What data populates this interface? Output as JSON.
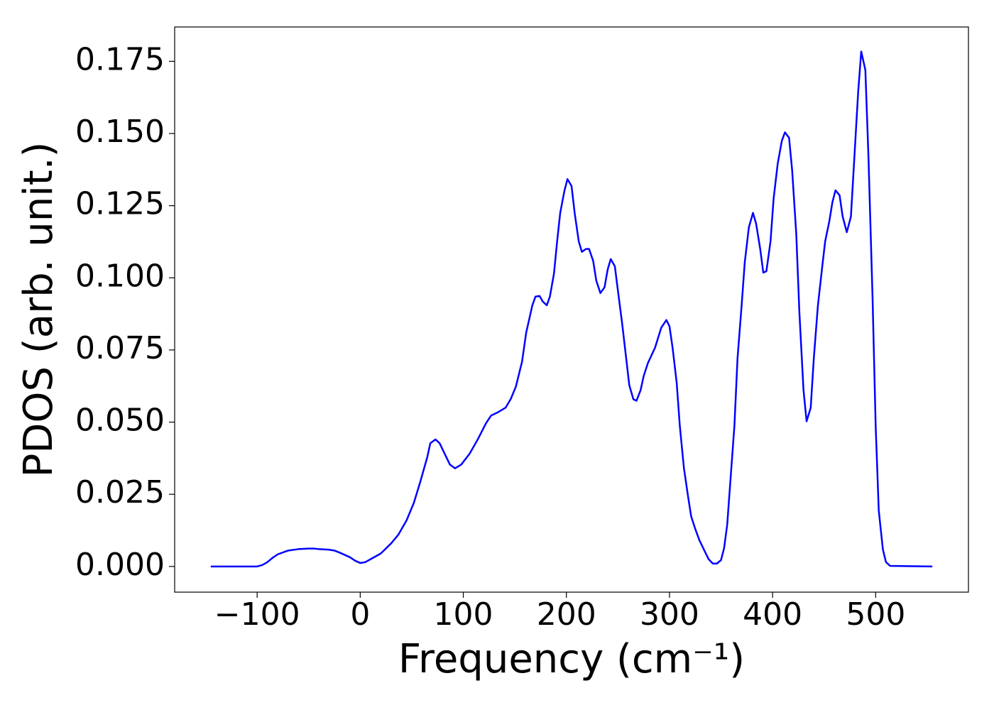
{
  "chart_data": {
    "type": "line",
    "xlabel": "Frequency (cm⁻¹)",
    "ylabel": "PDOS (arb. unit.)",
    "x": [
      -145,
      -100,
      -95,
      -90,
      -85,
      -80,
      -70,
      -60,
      -50,
      -45,
      -40,
      -30,
      -25,
      -20,
      -10,
      -5,
      0,
      5,
      10,
      20,
      30,
      37,
      45,
      52,
      58,
      65,
      68,
      73,
      77,
      82,
      87,
      92,
      98,
      106,
      114,
      122,
      127,
      134,
      141,
      146,
      151,
      157,
      161,
      167,
      170,
      174,
      177,
      181,
      184,
      188,
      191,
      194,
      198,
      201,
      205,
      208,
      212,
      215,
      219,
      222,
      226,
      229,
      233,
      237,
      240,
      243,
      247,
      250,
      254,
      258,
      261,
      265,
      268,
      272,
      275,
      279,
      286,
      292,
      297,
      300,
      303,
      307,
      310,
      314,
      318,
      321,
      325,
      329,
      334,
      338,
      342,
      346,
      350,
      353,
      356,
      359,
      363,
      366,
      370,
      373,
      377,
      381,
      384,
      388,
      391,
      394,
      398,
      401,
      405,
      409,
      412,
      416,
      419,
      423,
      426,
      430,
      433,
      437,
      440,
      444,
      448,
      451,
      455,
      458,
      461,
      465,
      468,
      472,
      476,
      479,
      483,
      486,
      490,
      493,
      497,
      500,
      503,
      507,
      510,
      514,
      555
    ],
    "series": [
      {
        "color": "#0000ff",
        "values": [
          0,
          0,
          0.0005,
          0.0015,
          0.003,
          0.0042,
          0.0055,
          0.006,
          0.0062,
          0.0062,
          0.006,
          0.0058,
          0.0055,
          0.0048,
          0.0032,
          0.002,
          0.0012,
          0.0015,
          0.0025,
          0.0045,
          0.008,
          0.011,
          0.016,
          0.022,
          0.029,
          0.0378,
          0.0427,
          0.044,
          0.0427,
          0.039,
          0.0353,
          0.034,
          0.0353,
          0.039,
          0.044,
          0.0496,
          0.0523,
          0.0535,
          0.055,
          0.058,
          0.0623,
          0.071,
          0.081,
          0.0905,
          0.0935,
          0.0937,
          0.0918,
          0.0905,
          0.0935,
          0.1016,
          0.1126,
          0.1225,
          0.13,
          0.1342,
          0.1318,
          0.1225,
          0.1126,
          0.109,
          0.11,
          0.11,
          0.1058,
          0.099,
          0.0947,
          0.0967,
          0.1028,
          0.1065,
          0.104,
          0.0955,
          0.0844,
          0.0721,
          0.0628,
          0.0579,
          0.0574,
          0.0611,
          0.066,
          0.0704,
          0.0758,
          0.0827,
          0.0854,
          0.0832,
          0.0758,
          0.0636,
          0.0488,
          0.0341,
          0.0243,
          0.0174,
          0.013,
          0.0091,
          0.0054,
          0.0025,
          0.001,
          0.001,
          0.0022,
          0.0064,
          0.0145,
          0.0292,
          0.0488,
          0.0721,
          0.0905,
          0.1053,
          0.1175,
          0.1225,
          0.1188,
          0.11,
          0.1018,
          0.1023,
          0.1126,
          0.1274,
          0.1396,
          0.1475,
          0.1504,
          0.1485,
          0.1372,
          0.1151,
          0.0881,
          0.0611,
          0.0503,
          0.055,
          0.0721,
          0.0905,
          0.1033,
          0.1126,
          0.1195,
          0.1261,
          0.1303,
          0.1286,
          0.1212,
          0.1158,
          0.1212,
          0.1396,
          0.1642,
          0.1784,
          0.172,
          0.1421,
          0.093,
          0.0488,
          0.0194,
          0.0059,
          0.0015,
          0.0002,
          0
        ]
      }
    ],
    "xlim": [
      -180,
      590
    ],
    "ylim": [
      -0.0089,
      0.1869
    ],
    "xticks": [
      {
        "value": -100,
        "label": "−100"
      },
      0,
      100,
      200,
      300,
      400,
      500
    ],
    "yticks": [
      {
        "value": 0,
        "label": "0.000"
      },
      {
        "value": 0.025,
        "label": "0.025"
      },
      {
        "value": 0.05,
        "label": "0.050"
      },
      {
        "value": 0.075,
        "label": "0.075"
      },
      {
        "value": 0.1,
        "label": "0.100"
      },
      {
        "value": 0.125,
        "label": "0.125"
      },
      {
        "value": 0.15,
        "label": "0.150"
      },
      {
        "value": 0.175,
        "label": "0.175"
      }
    ]
  }
}
